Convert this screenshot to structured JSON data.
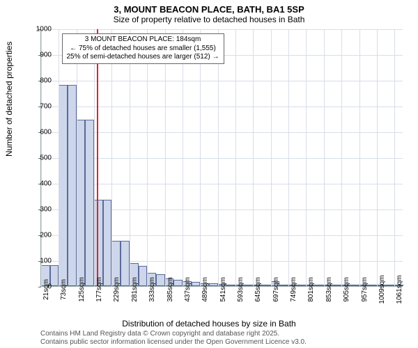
{
  "title": {
    "main": "3, MOUNT BEACON PLACE, BATH, BA1 5SP",
    "sub": "Size of property relative to detached houses in Bath"
  },
  "axes": {
    "ylabel": "Number of detached properties",
    "xlabel": "Distribution of detached houses by size in Bath",
    "ylim": [
      0,
      1000
    ],
    "ytick_step": 100,
    "label_fontsize": 12,
    "tick_fontsize": 10
  },
  "chart": {
    "type": "bar-histogram",
    "bar_fill": "#cdd6ea",
    "bar_border": "#5a6a99",
    "grid_color": "#d8dde8",
    "background": "#ffffff",
    "axis_color": "#9aa",
    "reference_line_color": "#d9262d",
    "reference_value_sqm": 184,
    "x_labels": [
      "21sqm",
      "73sqm",
      "125sqm",
      "177sqm",
      "229sqm",
      "281sqm",
      "333sqm",
      "385sqm",
      "437sqm",
      "489sqm",
      "541sqm",
      "593sqm",
      "645sqm",
      "697sqm",
      "749sqm",
      "801sqm",
      "853sqm",
      "905sqm",
      "957sqm",
      "1009sqm",
      "1061sqm"
    ],
    "bins_start_sqm": 21,
    "bin_width_sqm": 26,
    "values": [
      82,
      82,
      780,
      780,
      645,
      645,
      335,
      335,
      175,
      175,
      90,
      78,
      52,
      45,
      30,
      25,
      18,
      15,
      12,
      10,
      8,
      5,
      5,
      5,
      3,
      3,
      18,
      3,
      2,
      2,
      2,
      2,
      2,
      2,
      2,
      2,
      2,
      2,
      2,
      2,
      2
    ]
  },
  "annotation": {
    "line1": "3 MOUNT BEACON PLACE: 184sqm",
    "line2": "← 75% of detached houses are smaller (1,555)",
    "line3": "25% of semi-detached houses are larger (512) →"
  },
  "footer": {
    "line1": "Contains HM Land Registry data © Crown copyright and database right 2025.",
    "line2": "Contains public sector information licensed under the Open Government Licence v3.0."
  }
}
